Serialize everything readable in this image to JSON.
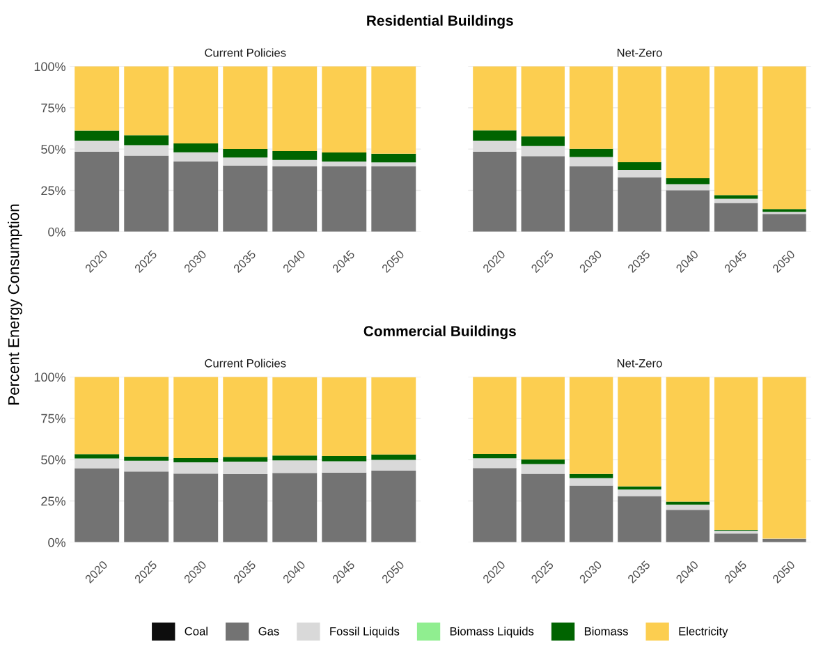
{
  "chart_data": [
    {
      "type": "bar",
      "stacked": true,
      "title": "Current Policies",
      "ylabel": "Percent Energy Consumption",
      "annotations": [
        "Residential Buildings"
      ],
      "categories": [
        "2020",
        "2025",
        "2030",
        "2035",
        "2040",
        "2045",
        "2050"
      ],
      "ylim": [
        0,
        100
      ],
      "yticks": [
        {
          "value": 0,
          "label": "0%"
        },
        {
          "value": 25,
          "label": "25%"
        },
        {
          "value": 50,
          "label": "50%"
        },
        {
          "value": 75,
          "label": "75%"
        },
        {
          "value": 100,
          "label": "100%"
        }
      ],
      "grid": "y",
      "legend": "bottom",
      "series": [
        {
          "name": "Coal",
          "color": "#0d0d0d",
          "values": [
            0,
            0,
            0,
            0,
            0,
            0,
            0
          ]
        },
        {
          "name": "Gas",
          "color": "#737373",
          "values": [
            48.4,
            46.1,
            42.5,
            40.0,
            39.5,
            39.5,
            39.5
          ]
        },
        {
          "name": "Fossil Liquids",
          "color": "#d9d9d9",
          "values": [
            6.7,
            6.3,
            5.6,
            4.9,
            3.9,
            3.0,
            2.4
          ]
        },
        {
          "name": "Biomass Liquids",
          "color": "#90ee90",
          "values": [
            0,
            0,
            0,
            0,
            0,
            0,
            0
          ]
        },
        {
          "name": "Biomass",
          "color": "#006400",
          "values": [
            6.1,
            6.0,
            5.3,
            5.1,
            5.4,
            5.4,
            5.3
          ]
        },
        {
          "name": "Electricity",
          "color": "#fcce50",
          "values": [
            38.8,
            41.6,
            46.6,
            50.0,
            51.2,
            52.1,
            52.8
          ]
        }
      ]
    },
    {
      "type": "bar",
      "stacked": true,
      "title": "Net-Zero",
      "categories": [
        "2020",
        "2025",
        "2030",
        "2035",
        "2040",
        "2045",
        "2050"
      ],
      "ylim": [
        0,
        100
      ],
      "yticks": [
        {
          "value": 0,
          "label": null
        },
        {
          "value": 25,
          "label": null
        },
        {
          "value": 50,
          "label": null
        },
        {
          "value": 75,
          "label": null
        },
        {
          "value": 100,
          "label": null
        }
      ],
      "grid": "y",
      "tick_labels": "x",
      "series": [
        {
          "color": "#0d0d0d",
          "values": [
            0,
            0,
            0,
            0,
            0,
            0,
            0
          ]
        },
        {
          "color": "#737373",
          "values": [
            48.4,
            45.7,
            39.6,
            33.0,
            25.1,
            17.4,
            10.8
          ]
        },
        {
          "color": "#d9d9d9",
          "values": [
            6.7,
            6.1,
            5.6,
            4.4,
            3.7,
            2.5,
            1.2
          ]
        },
        {
          "color": "#90ee90",
          "values": [
            0,
            0,
            0,
            0,
            0,
            0,
            0
          ]
        },
        {
          "color": "#006400",
          "values": [
            6.2,
            5.9,
            5.0,
            4.6,
            3.6,
            2.2,
            1.7
          ]
        },
        {
          "color": "#fcce50",
          "values": [
            38.7,
            42.3,
            49.8,
            58.0,
            67.6,
            77.9,
            86.3
          ]
        }
      ]
    },
    {
      "type": "bar",
      "stacked": true,
      "title": "Current Policies",
      "annotations": [
        "Commercial Buildings"
      ],
      "categories": [
        "2020",
        "2025",
        "2030",
        "2035",
        "2040",
        "2045",
        "2050"
      ],
      "ylim": [
        0,
        100
      ],
      "yticks": [
        {
          "value": 0,
          "label": "0%"
        },
        {
          "value": 25,
          "label": "25%"
        },
        {
          "value": 50,
          "label": "50%"
        },
        {
          "value": 75,
          "label": "75%"
        },
        {
          "value": 100,
          "label": "100%"
        }
      ],
      "grid": "y",
      "series": [
        {
          "color": "#0d0d0d",
          "values": [
            0,
            0,
            0,
            0,
            0,
            null,
            null
          ]
        },
        {
          "color": "#737373",
          "values": [
            44.8,
            42.8,
            41.5,
            41.2,
            41.9,
            42.1,
            43.3
          ]
        },
        {
          "color": "#d9d9d9",
          "values": [
            5.9,
            6.5,
            6.9,
            7.6,
            7.6,
            6.9,
            6.5
          ]
        },
        {
          "color": "#90ee90",
          "values": [
            0,
            0,
            0,
            0,
            null,
            0,
            0
          ]
        },
        {
          "color": "#006400",
          "values": [
            2.6,
            2.5,
            2.5,
            2.8,
            3.0,
            3.1,
            3.3
          ]
        },
        {
          "color": "#fcce50",
          "values": [
            46.7,
            48.2,
            49.1,
            48.4,
            47.3,
            47.6,
            46.6
          ]
        }
      ]
    },
    {
      "type": "bar",
      "stacked": true,
      "title": "Net-Zero",
      "categories": [
        "2020",
        "2025",
        "2030",
        "2035",
        "2040",
        "2045",
        "2050"
      ],
      "ylim": [
        0,
        100
      ],
      "yticks": [
        {
          "value": 0,
          "label": null
        },
        {
          "value": 25,
          "label": null
        },
        {
          "value": 50,
          "label": null
        },
        {
          "value": 75,
          "label": null
        },
        {
          "value": 100,
          "label": null
        }
      ],
      "grid": "y",
      "tick_labels": "x",
      "series": [
        {
          "color": "#0d0d0d",
          "values": [
            0,
            0,
            0,
            0,
            0,
            0,
            0
          ]
        },
        {
          "color": "#737373",
          "values": [
            44.9,
            41.4,
            34.3,
            27.9,
            19.6,
            5.3,
            2.1
          ]
        },
        {
          "color": "#d9d9d9",
          "values": [
            5.9,
            5.9,
            4.5,
            4.0,
            3.2,
            1.7,
            0.2
          ]
        },
        {
          "color": "#90ee90",
          "values": [
            0,
            0,
            0,
            0,
            0,
            null,
            0
          ]
        },
        {
          "color": "#006400",
          "values": [
            2.6,
            2.8,
            2.5,
            1.9,
            1.8,
            0.5,
            0
          ]
        },
        {
          "color": "#fcce50",
          "values": [
            46.6,
            49.9,
            58.7,
            66.2,
            75.4,
            92.3,
            97.7
          ]
        }
      ]
    }
  ]
}
